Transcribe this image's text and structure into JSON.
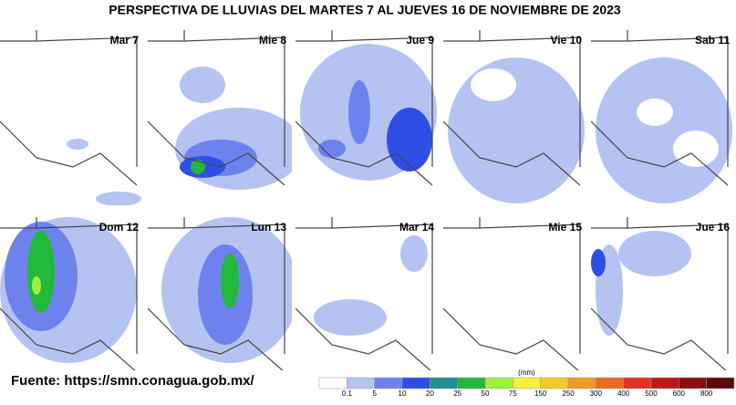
{
  "header": {
    "title": "PERSPECTIVA DE LLUVIAS DEL MARTES 7 AL JUEVES 16 DE NOVIEMBRE DE 2023"
  },
  "panels": [
    "Mar 7",
    "Mie 8",
    "Jue 9",
    "Vie 10",
    "Sab 11",
    "Dom 12",
    "Lun 13",
    "Mar 14",
    "Mie 15",
    "Jue 16"
  ],
  "source": "Fuente: https://smn.conagua.gob.mx/",
  "legend": {
    "unit": "(mm)",
    "levels": [
      0.1,
      5,
      10,
      20,
      25,
      50,
      75,
      150,
      250,
      300,
      400,
      500,
      600,
      800
    ],
    "colors": [
      "#ffffff",
      "#b4c3f2",
      "#6e82ee",
      "#2e4fe6",
      "#1f8f8f",
      "#22b83a",
      "#9cf03c",
      "#f5f03c",
      "#f5c828",
      "#f09a28",
      "#ee6a22",
      "#e63020",
      "#c01818",
      "#8c1010",
      "#5a0a0a"
    ]
  }
}
